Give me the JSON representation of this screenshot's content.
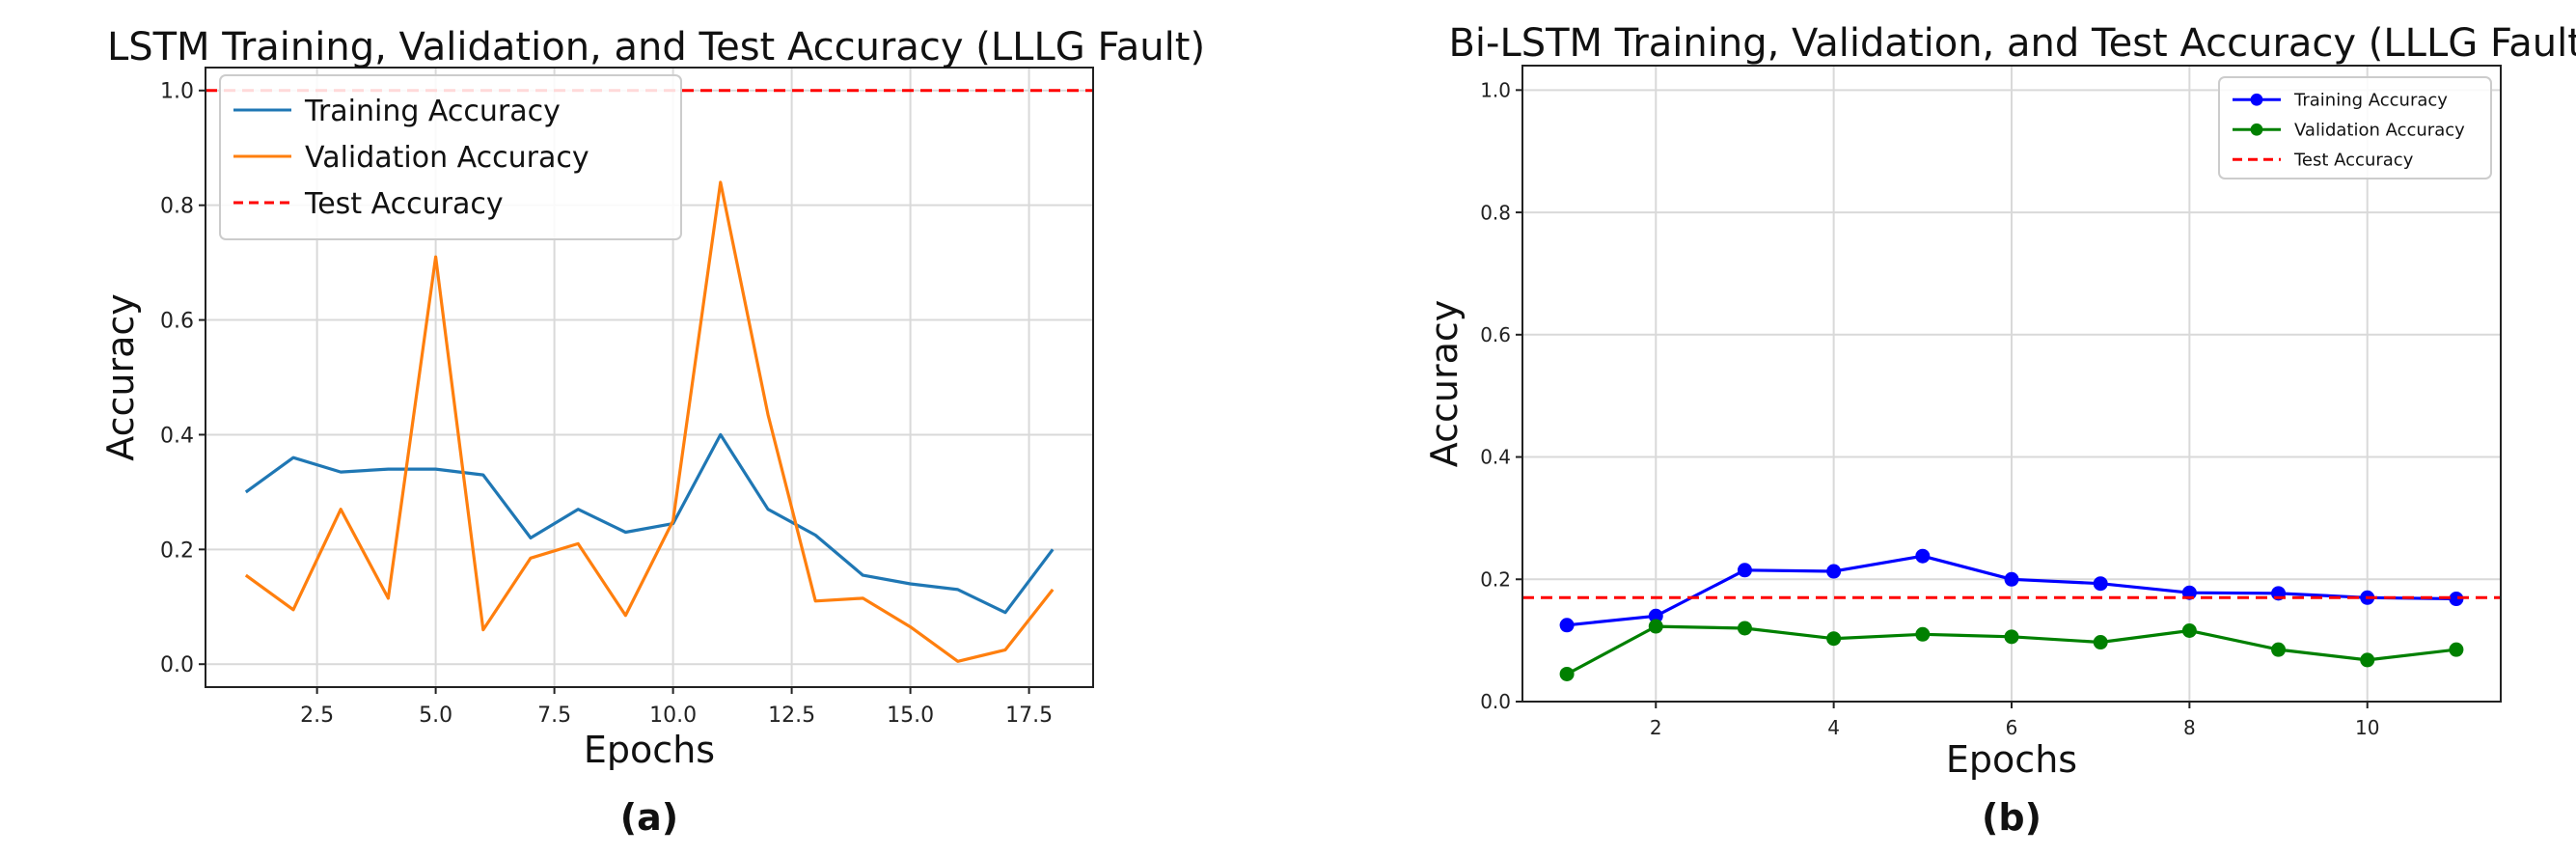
{
  "chart_data": [
    {
      "type": "line",
      "title": "LSTM Training, Validation, and Test Accuracy (LLLG Fault)",
      "panel_label": "(a)",
      "xlabel": "Epochs",
      "ylabel": "Accuracy",
      "xlim": [
        0.15,
        18.85
      ],
      "ylim": [
        -0.04,
        1.04
      ],
      "xticks": [
        "2.5",
        "5.0",
        "7.5",
        "10.0",
        "12.5",
        "15.0",
        "17.5"
      ],
      "xtick_values": [
        2.5,
        5.0,
        7.5,
        10.0,
        12.5,
        15.0,
        17.5
      ],
      "yticks": [
        "0.0",
        "0.2",
        "0.4",
        "0.6",
        "0.8",
        "1.0"
      ],
      "ytick_values": [
        0.0,
        0.2,
        0.4,
        0.6,
        0.8,
        1.0
      ],
      "grid": true,
      "legend_position": "top-left",
      "x": [
        1,
        2,
        3,
        4,
        5,
        6,
        7,
        8,
        9,
        10,
        11,
        12,
        13,
        14,
        15,
        16,
        17,
        18
      ],
      "series": [
        {
          "name": "Training Accuracy",
          "color": "#1f77b4",
          "style": "solid",
          "markers": false,
          "values": [
            0.3,
            0.36,
            0.335,
            0.34,
            0.34,
            0.33,
            0.22,
            0.27,
            0.23,
            0.245,
            0.4,
            0.27,
            0.225,
            0.155,
            0.14,
            0.13,
            0.09,
            0.2
          ]
        },
        {
          "name": "Validation Accuracy",
          "color": "#ff7f0e",
          "style": "solid",
          "markers": false,
          "values": [
            0.155,
            0.095,
            0.27,
            0.115,
            0.71,
            0.06,
            0.185,
            0.21,
            0.085,
            0.25,
            0.84,
            0.435,
            0.11,
            0.115,
            0.065,
            0.005,
            0.025,
            0.13
          ]
        },
        {
          "name": "Test Accuracy",
          "color": "#ff0000",
          "style": "dashed",
          "markers": false,
          "constant": 1.0
        }
      ]
    },
    {
      "type": "line",
      "title": "Bi-LSTM Training, Validation, and Test Accuracy (LLLG Fault)",
      "panel_label": "(b)",
      "xlabel": "Epochs",
      "ylabel": "Accuracy",
      "xlim": [
        0.5,
        11.5
      ],
      "ylim": [
        0.0,
        1.04
      ],
      "xticks": [
        "2",
        "4",
        "6",
        "8",
        "10"
      ],
      "xtick_values": [
        2,
        4,
        6,
        8,
        10
      ],
      "yticks": [
        "0.0",
        "0.2",
        "0.4",
        "0.6",
        "0.8",
        "1.0"
      ],
      "ytick_values": [
        0.0,
        0.2,
        0.4,
        0.6,
        0.8,
        1.0
      ],
      "grid": true,
      "legend_position": "top-right",
      "x": [
        1,
        2,
        3,
        4,
        5,
        6,
        7,
        8,
        9,
        10,
        11
      ],
      "series": [
        {
          "name": "Training Accuracy",
          "color": "#0000ff",
          "style": "solid",
          "markers": true,
          "values": [
            0.125,
            0.14,
            0.215,
            0.213,
            0.238,
            0.2,
            0.193,
            0.178,
            0.177,
            0.17,
            0.168
          ]
        },
        {
          "name": "Validation Accuracy",
          "color": "#008000",
          "style": "solid",
          "markers": true,
          "values": [
            0.045,
            0.123,
            0.12,
            0.103,
            0.11,
            0.106,
            0.097,
            0.116,
            0.085,
            0.068,
            0.085
          ]
        },
        {
          "name": "Test Accuracy",
          "color": "#ff0000",
          "style": "dashed",
          "markers": false,
          "constant": 0.17
        }
      ]
    }
  ]
}
